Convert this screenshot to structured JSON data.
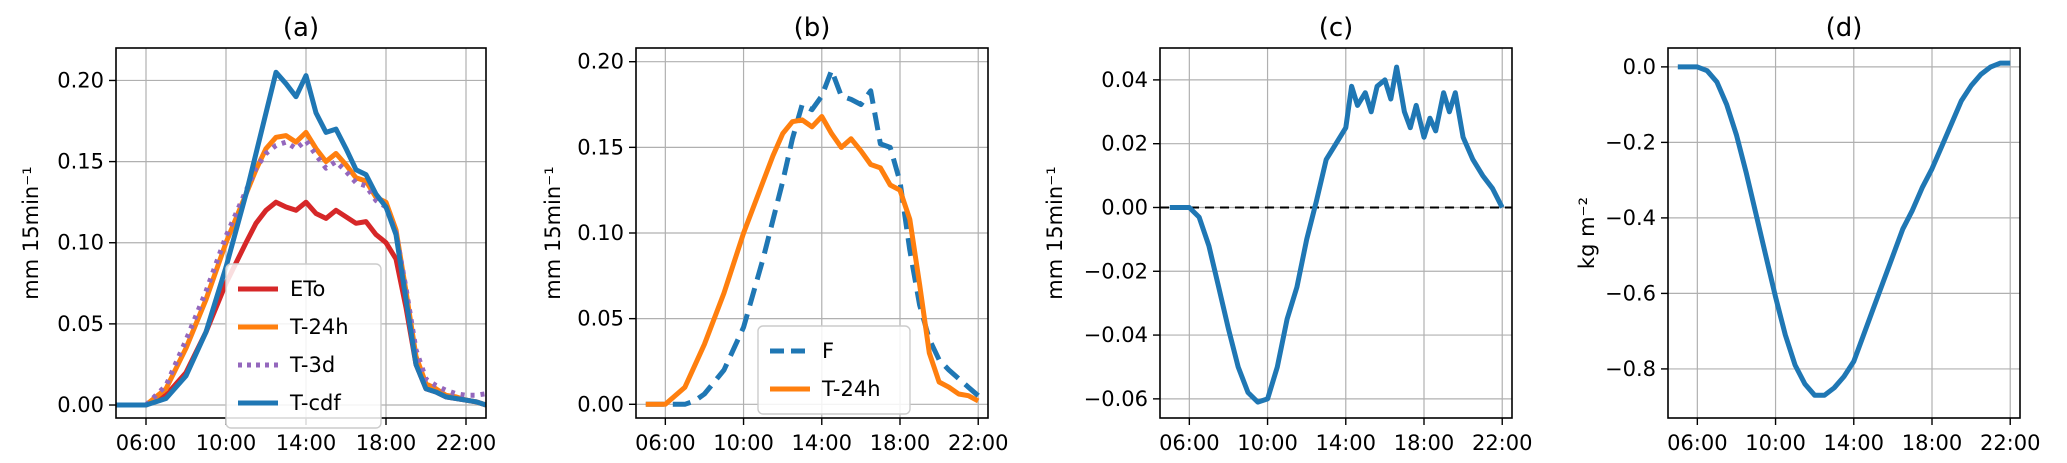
{
  "chart_data": [
    {
      "type": "line",
      "title": "(a)",
      "ylabel": "mm 15min⁻¹",
      "xlabel": "",
      "xlim": [
        4.5,
        23
      ],
      "ylim": [
        -0.008,
        0.22
      ],
      "xticks": [
        6,
        10,
        14,
        18,
        22
      ],
      "xtick_labels": [
        "06:00",
        "10:00",
        "14:00",
        "18:00",
        "22:00"
      ],
      "yticks": [
        0,
        0.05,
        0.1,
        0.15,
        0.2
      ],
      "ytick_labels": [
        "0.00",
        "0.05",
        "0.10",
        "0.15",
        "0.20"
      ],
      "grid": true,
      "legend": "lower-center",
      "series": [
        {
          "name": "ETo",
          "color": "#d62728",
          "style": "solid",
          "x": [
            4.5,
            6,
            7,
            8,
            9,
            10,
            11,
            11.5,
            12,
            12.5,
            13,
            13.5,
            14,
            14.5,
            15,
            15.5,
            16,
            16.5,
            17,
            17.5,
            18,
            18.5,
            19,
            19.5,
            20,
            20.5,
            21,
            21.5,
            22,
            22.5,
            23
          ],
          "y": [
            0,
            0,
            0.006,
            0.02,
            0.045,
            0.075,
            0.1,
            0.112,
            0.12,
            0.125,
            0.122,
            0.12,
            0.125,
            0.118,
            0.115,
            0.12,
            0.116,
            0.112,
            0.113,
            0.105,
            0.1,
            0.09,
            0.06,
            0.025,
            0.01,
            0.008,
            0.005,
            0.004,
            0.003,
            0.002,
            0
          ]
        },
        {
          "name": "T-24h",
          "color": "#ff7f0e",
          "style": "solid",
          "x": [
            4.5,
            6,
            7,
            8,
            9,
            10,
            11,
            11.5,
            12,
            12.5,
            13,
            13.5,
            14,
            14.5,
            15,
            15.5,
            16,
            16.5,
            17,
            17.5,
            18,
            18.5,
            19,
            19.5,
            20,
            20.5,
            21,
            21.5,
            22,
            22.5,
            23
          ],
          "y": [
            0,
            0,
            0.01,
            0.035,
            0.065,
            0.1,
            0.13,
            0.145,
            0.158,
            0.165,
            0.166,
            0.162,
            0.168,
            0.158,
            0.15,
            0.155,
            0.148,
            0.14,
            0.138,
            0.128,
            0.125,
            0.108,
            0.07,
            0.03,
            0.013,
            0.01,
            0.006,
            0.005,
            0.003,
            0.002,
            0
          ]
        },
        {
          "name": "T-3d",
          "color": "#9467bd",
          "style": "dotted",
          "x": [
            4.5,
            6,
            7,
            8,
            9,
            10,
            11,
            11.5,
            12,
            12.5,
            13,
            13.5,
            14,
            14.5,
            15,
            15.5,
            16,
            16.5,
            17,
            17.5,
            18,
            18.5,
            19,
            19.5,
            20,
            20.5,
            21,
            21.5,
            22,
            22.5,
            23
          ],
          "y": [
            0,
            0,
            0.012,
            0.04,
            0.07,
            0.104,
            0.132,
            0.146,
            0.155,
            0.16,
            0.162,
            0.158,
            0.163,
            0.154,
            0.146,
            0.15,
            0.144,
            0.137,
            0.135,
            0.126,
            0.122,
            0.106,
            0.072,
            0.034,
            0.016,
            0.012,
            0.009,
            0.007,
            0.006,
            0.006,
            0.007
          ]
        },
        {
          "name": "T-cdf",
          "color": "#1f77b4",
          "style": "solid",
          "x": [
            4.5,
            6,
            7,
            8,
            9,
            10,
            11,
            11.5,
            12,
            12.5,
            13,
            13.5,
            14,
            14.5,
            15,
            15.5,
            16,
            16.5,
            17,
            17.5,
            18,
            18.5,
            19,
            19.5,
            20,
            20.5,
            21,
            21.5,
            22,
            22.5,
            23
          ],
          "y": [
            0,
            0,
            0.004,
            0.018,
            0.045,
            0.085,
            0.13,
            0.155,
            0.18,
            0.205,
            0.198,
            0.19,
            0.203,
            0.18,
            0.168,
            0.17,
            0.158,
            0.145,
            0.142,
            0.13,
            0.122,
            0.105,
            0.065,
            0.025,
            0.01,
            0.008,
            0.005,
            0.004,
            0.003,
            0.002,
            0
          ]
        }
      ]
    },
    {
      "type": "line",
      "title": "(b)",
      "ylabel": "mm 15min⁻¹",
      "xlabel": "",
      "xlim": [
        4.5,
        22.5
      ],
      "ylim": [
        -0.008,
        0.208
      ],
      "xticks": [
        6,
        10,
        14,
        18,
        22
      ],
      "xtick_labels": [
        "06:00",
        "10:00",
        "14:00",
        "18:00",
        "22:00"
      ],
      "yticks": [
        0,
        0.05,
        0.1,
        0.15,
        0.2
      ],
      "ytick_labels": [
        "0.00",
        "0.05",
        "0.10",
        "0.15",
        "0.20"
      ],
      "grid": true,
      "legend": "lower-center",
      "series": [
        {
          "name": "F",
          "color": "#1f77b4",
          "style": "dashed",
          "x": [
            5,
            6,
            7,
            7.5,
            8,
            9,
            10,
            11,
            12,
            12.5,
            13,
            13.5,
            14,
            14.5,
            15,
            15.5,
            16,
            16.5,
            17,
            17.5,
            18,
            18.5,
            19,
            19.5,
            20,
            20.5,
            21,
            21.5,
            22
          ],
          "y": [
            0,
            0,
            0,
            0.002,
            0.006,
            0.02,
            0.045,
            0.085,
            0.13,
            0.155,
            0.175,
            0.172,
            0.18,
            0.195,
            0.18,
            0.178,
            0.175,
            0.183,
            0.152,
            0.15,
            0.13,
            0.09,
            0.058,
            0.038,
            0.026,
            0.02,
            0.015,
            0.01,
            0.005
          ]
        },
        {
          "name": "T-24h",
          "color": "#ff7f0e",
          "style": "solid",
          "x": [
            5,
            6,
            7,
            8,
            9,
            10,
            11,
            11.5,
            12,
            12.5,
            13,
            13.5,
            14,
            14.5,
            15,
            15.5,
            16,
            16.5,
            17,
            17.5,
            18,
            18.5,
            19,
            19.5,
            20,
            20.5,
            21,
            21.5,
            22
          ],
          "y": [
            0,
            0,
            0.01,
            0.035,
            0.065,
            0.1,
            0.13,
            0.145,
            0.158,
            0.165,
            0.166,
            0.162,
            0.168,
            0.158,
            0.15,
            0.155,
            0.148,
            0.14,
            0.138,
            0.128,
            0.125,
            0.108,
            0.07,
            0.03,
            0.013,
            0.01,
            0.006,
            0.005,
            0.002
          ]
        }
      ]
    },
    {
      "type": "line",
      "title": "(c)",
      "ylabel": "mm 15min⁻¹",
      "xlabel": "",
      "xlim": [
        4.5,
        22.5
      ],
      "ylim": [
        -0.066,
        0.05
      ],
      "xticks": [
        6,
        10,
        14,
        18,
        22
      ],
      "xtick_labels": [
        "06:00",
        "10:00",
        "14:00",
        "18:00",
        "22:00"
      ],
      "yticks": [
        -0.06,
        -0.04,
        -0.02,
        0,
        0.02,
        0.04
      ],
      "ytick_labels": [
        "−0.06",
        "−0.04",
        "−0.02",
        "0.00",
        "0.02",
        "0.04"
      ],
      "grid": true,
      "reference_line": {
        "y": 0,
        "color": "#000000",
        "style": "dashed"
      },
      "series": [
        {
          "name": "",
          "color": "#1f77b4",
          "style": "solid",
          "x": [
            5,
            6,
            6.5,
            7,
            7.5,
            8,
            8.5,
            9,
            9.5,
            10,
            10.5,
            11,
            11.5,
            12,
            12.5,
            13,
            13.5,
            14,
            14.3,
            14.6,
            15,
            15.3,
            15.6,
            16,
            16.3,
            16.6,
            17,
            17.3,
            17.6,
            18,
            18.3,
            18.6,
            19,
            19.3,
            19.6,
            20,
            20.5,
            21,
            21.5,
            22
          ],
          "y": [
            0,
            0,
            -0.003,
            -0.012,
            -0.025,
            -0.038,
            -0.05,
            -0.058,
            -0.061,
            -0.06,
            -0.05,
            -0.035,
            -0.025,
            -0.01,
            0.002,
            0.015,
            0.02,
            0.025,
            0.038,
            0.032,
            0.036,
            0.03,
            0.038,
            0.04,
            0.034,
            0.044,
            0.03,
            0.025,
            0.032,
            0.022,
            0.028,
            0.024,
            0.036,
            0.03,
            0.036,
            0.022,
            0.015,
            0.01,
            0.006,
            0
          ]
        }
      ]
    },
    {
      "type": "line",
      "title": "(d)",
      "ylabel": "kg m⁻²",
      "xlabel": "",
      "xlim": [
        4.5,
        22.5
      ],
      "ylim": [
        -0.93,
        0.05
      ],
      "xticks": [
        6,
        10,
        14,
        18,
        22
      ],
      "xtick_labels": [
        "06:00",
        "10:00",
        "14:00",
        "18:00",
        "22:00"
      ],
      "yticks": [
        -0.8,
        -0.6,
        -0.4,
        -0.2,
        0
      ],
      "ytick_labels": [
        "−0.8",
        "−0.6",
        "−0.4",
        "−0.2",
        "0.0"
      ],
      "grid": true,
      "series": [
        {
          "name": "",
          "color": "#1f77b4",
          "style": "solid",
          "x": [
            5,
            5.5,
            6,
            6.5,
            7,
            7.5,
            8,
            8.5,
            9,
            9.5,
            10,
            10.5,
            11,
            11.5,
            12,
            12.5,
            13,
            13.5,
            14,
            14.5,
            15,
            15.5,
            16,
            16.5,
            17,
            17.5,
            18,
            18.5,
            19,
            19.5,
            20,
            20.5,
            21,
            21.5,
            22
          ],
          "y": [
            0,
            0,
            0,
            -0.01,
            -0.04,
            -0.1,
            -0.18,
            -0.28,
            -0.39,
            -0.5,
            -0.61,
            -0.71,
            -0.79,
            -0.84,
            -0.87,
            -0.87,
            -0.85,
            -0.82,
            -0.78,
            -0.71,
            -0.64,
            -0.57,
            -0.5,
            -0.43,
            -0.38,
            -0.32,
            -0.27,
            -0.21,
            -0.15,
            -0.09,
            -0.05,
            -0.02,
            0,
            0.01,
            0.01
          ]
        }
      ]
    }
  ]
}
